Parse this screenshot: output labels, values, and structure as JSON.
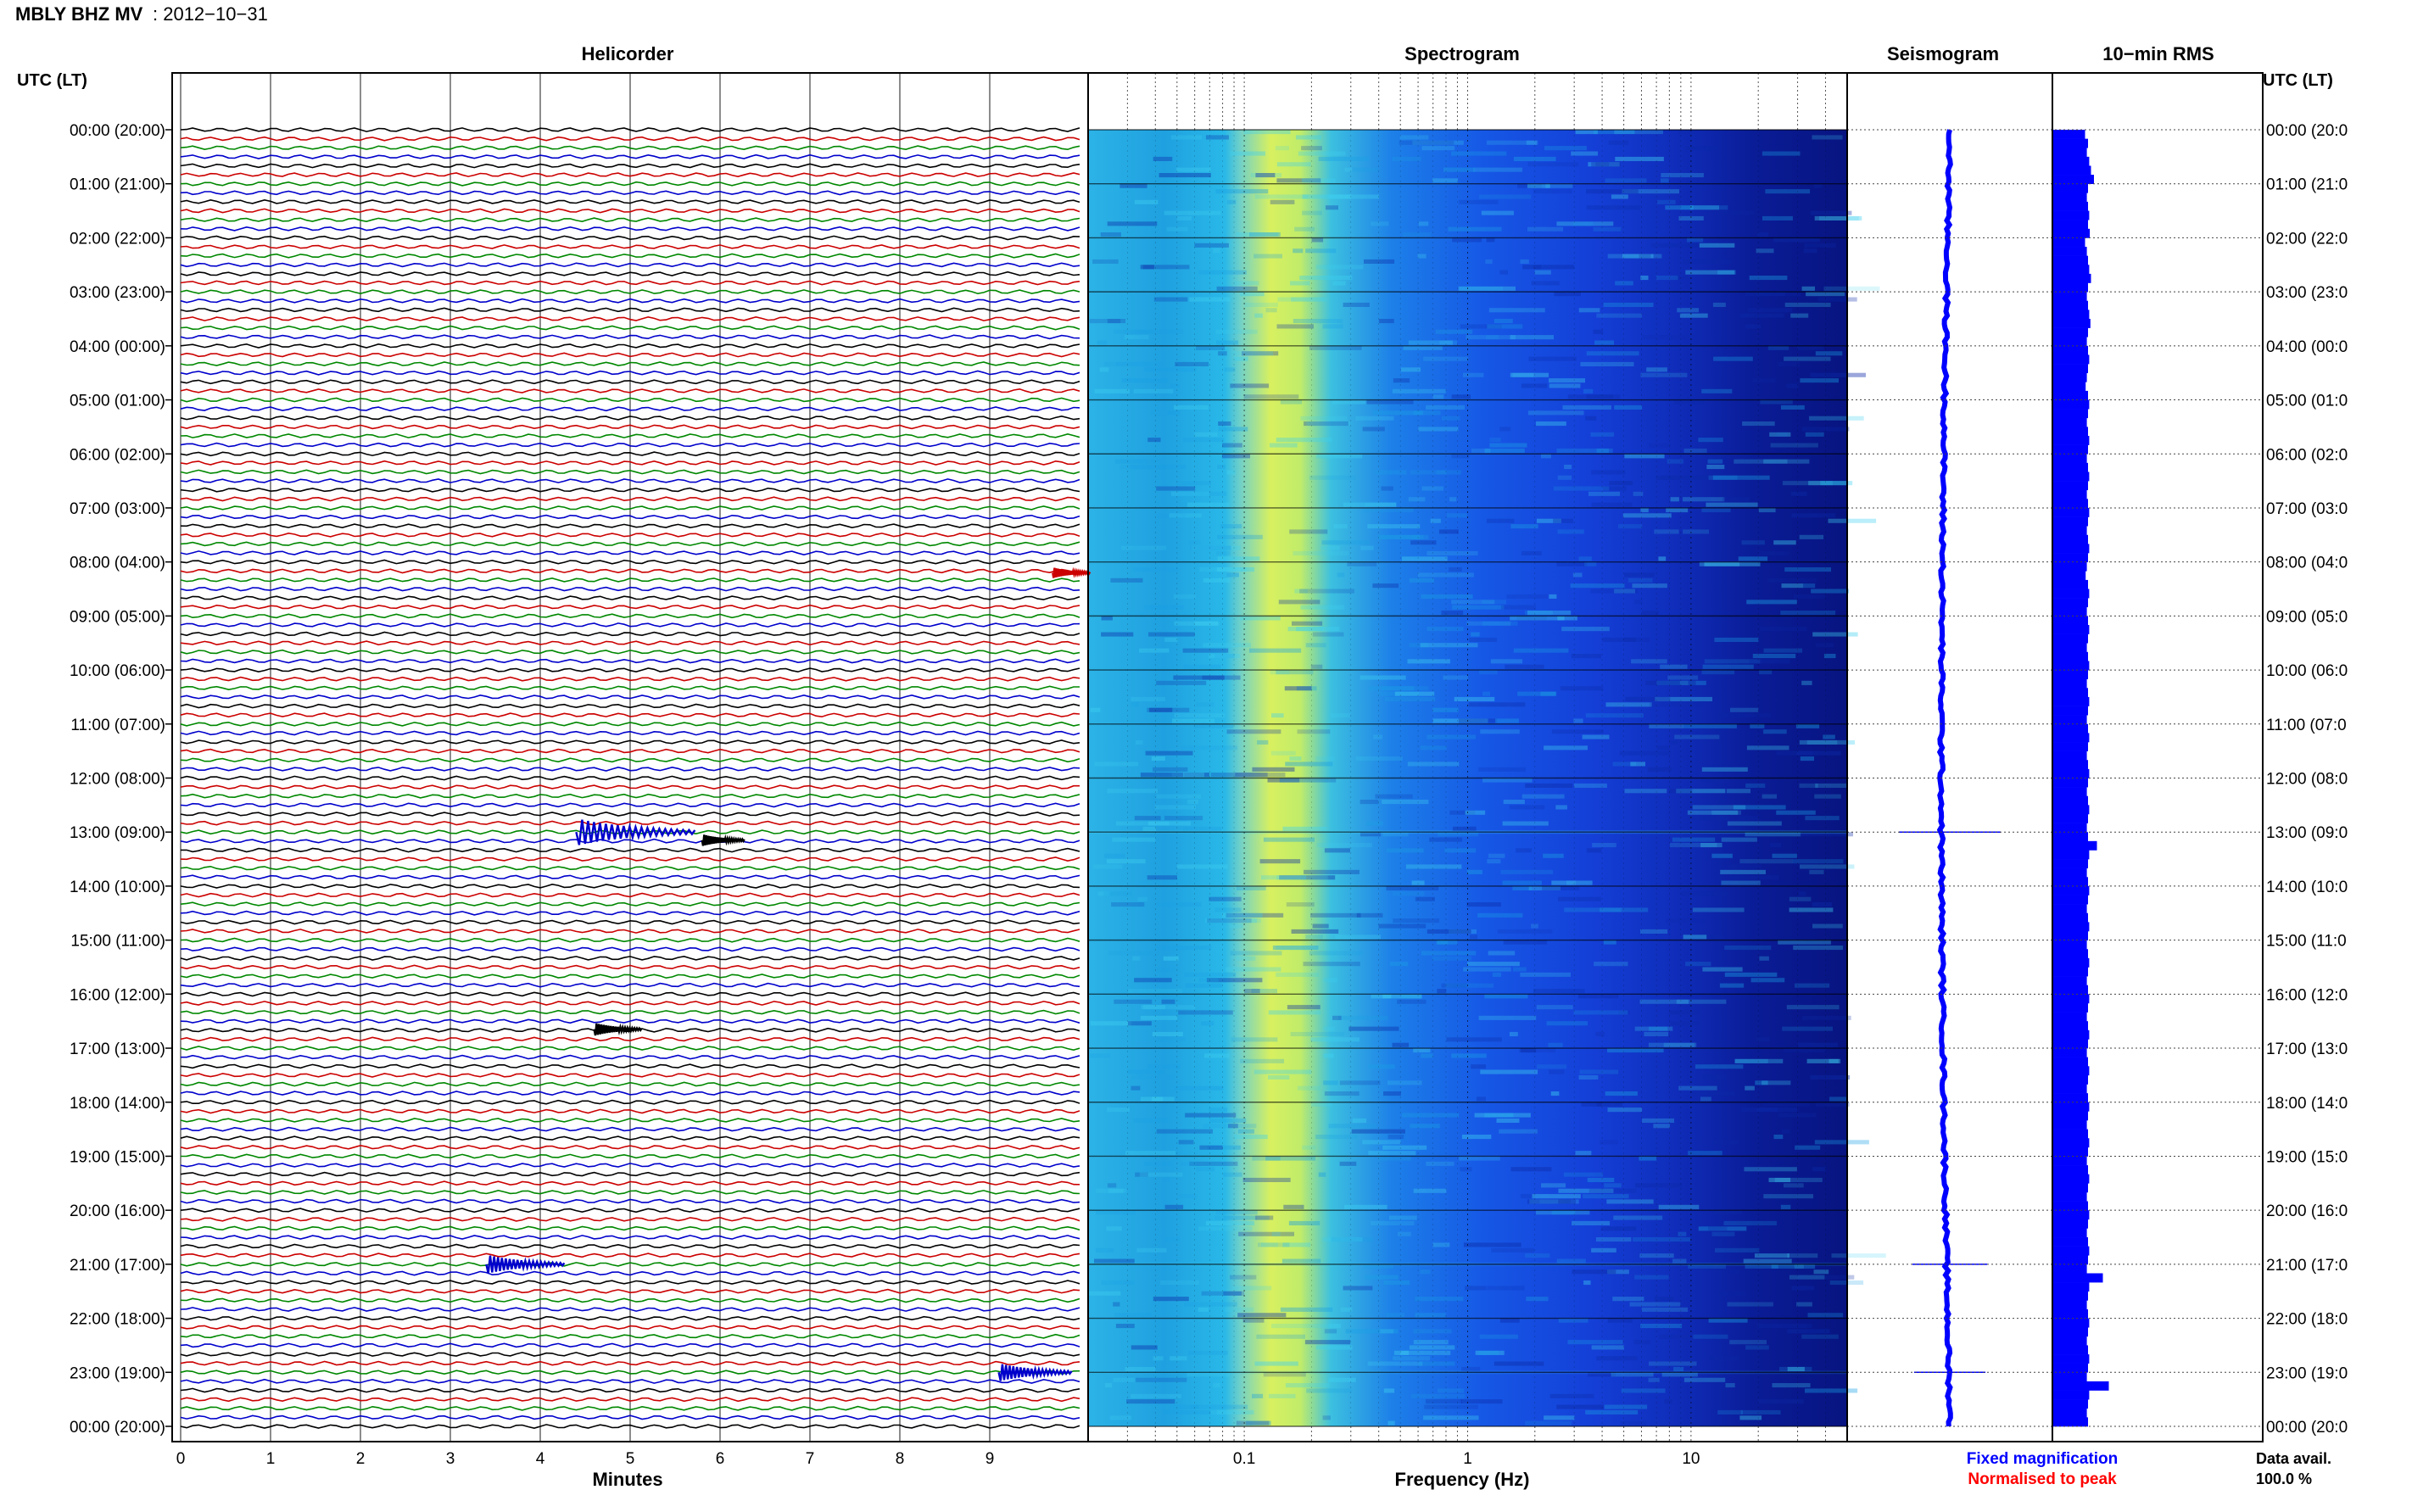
{
  "header": {
    "station_label": "MBLY BHZ MV",
    "date_label": ": 2012−10−31"
  },
  "panels": {
    "helicorder_title": "Helicorder",
    "spectrogram_title": "Spectrogram",
    "seismogram_title": "Seismogram",
    "rms_title": "10−min RMS"
  },
  "axes": {
    "left_title": "UTC (LT)",
    "right_title": "UTC (LT)",
    "helicorder_xlabel": "Minutes",
    "spectrogram_xlabel": "Frequency (Hz)"
  },
  "legend": {
    "fixed_label": "Fixed magnification",
    "fixed_color": "#0000ff",
    "normalised_label": "Normalised to peak",
    "normalised_color": "#ff0000"
  },
  "availability": {
    "label": "Data avail.",
    "value": "100.0 %"
  },
  "colors": {
    "trace_cycle": [
      "#000000",
      "#cc0000",
      "#008800",
      "#0000cc"
    ],
    "spectrogram_low": "#0a0a8c",
    "spectrogram_mid": "#1f7fe0",
    "spectrogram_high": "#c8f050",
    "seismogram": "#0000ff",
    "rms": "#0000ff"
  },
  "chart_data": {
    "type": "heatmap",
    "time_labels_left": [
      "00:00 (20:00)",
      "01:00 (21:00)",
      "02:00 (22:00)",
      "03:00 (23:00)",
      "04:00 (00:00)",
      "05:00 (01:00)",
      "06:00 (02:00)",
      "07:00 (03:00)",
      "08:00 (04:00)",
      "09:00 (05:00)",
      "10:00 (06:00)",
      "11:00 (07:00)",
      "12:00 (08:00)",
      "13:00 (09:00)",
      "14:00 (10:00)",
      "15:00 (11:00)",
      "16:00 (12:00)",
      "17:00 (13:00)",
      "18:00 (14:00)",
      "19:00 (15:00)",
      "20:00 (16:00)",
      "21:00 (17:00)",
      "22:00 (18:00)",
      "23:00 (19:00)",
      "00:00 (20:00)"
    ],
    "time_labels_right": [
      "00:00 (20:0",
      "01:00 (21:0",
      "02:00 (22:0",
      "03:00 (23:0",
      "04:00 (00:0",
      "05:00 (01:0",
      "06:00 (02:0",
      "07:00 (03:0",
      "08:00 (04:0",
      "09:00 (05:0",
      "10:00 (06:0",
      "11:00 (07:0",
      "12:00 (08:0",
      "13:00 (09:0",
      "14:00 (10:0",
      "15:00 (11:0",
      "16:00 (12:0",
      "17:00 (13:0",
      "18:00 (14:0",
      "19:00 (15:0",
      "20:00 (16:0",
      "21:00 (17:0",
      "22:00 (18:0",
      "23:00 (19:0",
      "00:00 (20:0"
    ],
    "minute_ticks": [
      "0",
      "1",
      "2",
      "3",
      "4",
      "5",
      "6",
      "7",
      "8",
      "9"
    ],
    "frequency_ticks": [
      {
        "value": 0.1,
        "label": "0.1"
      },
      {
        "value": 1,
        "label": "1"
      },
      {
        "value": 10,
        "label": "10"
      }
    ],
    "frequency_range_hz": [
      0.02,
      50
    ],
    "frequency_scale": "log",
    "minutes_range": [
      0,
      10
    ],
    "hours_range": [
      0,
      24
    ],
    "traces_per_hour": 6,
    "events": [
      {
        "hour": 13.0,
        "minute": 4.4,
        "color": "#0000cc",
        "strength": 1.0
      },
      {
        "hour": 13.15,
        "minute": 5.8,
        "color": "#000000",
        "strength": 0.25
      },
      {
        "hour": 8.2,
        "minute": 9.7,
        "color": "#cc0000",
        "strength": 0.2
      },
      {
        "hour": 16.65,
        "minute": 4.6,
        "color": "#000000",
        "strength": 0.3
      },
      {
        "hour": 21.0,
        "minute": 3.4,
        "color": "#0000cc",
        "strength": 0.6
      },
      {
        "hour": 23.0,
        "minute": 9.1,
        "color": "#0000cc",
        "strength": 0.55
      }
    ],
    "rms_values": [
      0.55,
      0.6,
      0.58,
      0.62,
      0.65,
      0.7,
      0.6,
      0.58,
      0.6,
      0.62,
      0.6,
      0.63,
      0.55,
      0.58,
      0.6,
      0.62,
      0.65,
      0.6,
      0.58,
      0.6,
      0.62,
      0.64,
      0.6,
      0.58,
      0.6,
      0.62,
      0.6,
      0.58,
      0.56,
      0.6,
      0.62,
      0.6,
      0.58,
      0.6,
      0.62,
      0.6,
      0.58,
      0.6,
      0.62,
      0.6,
      0.58,
      0.6,
      0.62,
      0.6,
      0.58,
      0.6,
      0.62,
      0.6,
      0.58,
      0.56,
      0.6,
      0.62,
      0.6,
      0.58,
      0.6,
      0.62,
      0.6,
      0.58,
      0.6,
      0.62,
      0.6,
      0.58,
      0.6,
      0.62,
      0.6,
      0.58,
      0.6,
      0.62,
      0.6,
      0.58,
      0.6,
      0.62,
      0.6,
      0.58,
      0.6,
      0.62,
      0.6,
      0.58,
      0.6,
      0.75,
      0.62,
      0.6,
      0.58,
      0.6,
      0.62,
      0.6,
      0.58,
      0.6,
      0.62,
      0.6,
      0.58,
      0.6,
      0.62,
      0.6,
      0.58,
      0.6,
      0.62,
      0.6,
      0.58,
      0.6,
      0.62,
      0.6,
      0.58,
      0.6,
      0.62,
      0.6,
      0.58,
      0.6,
      0.62,
      0.6,
      0.58,
      0.6,
      0.62,
      0.6,
      0.58,
      0.6,
      0.62,
      0.6,
      0.58,
      0.6,
      0.62,
      0.6,
      0.58,
      0.6,
      0.62,
      0.6,
      0.58,
      0.85,
      0.62,
      0.6,
      0.58,
      0.6,
      0.62,
      0.6,
      0.58,
      0.6,
      0.62,
      0.6,
      0.58,
      0.95,
      0.62,
      0.6,
      0.58,
      0.6
    ]
  }
}
